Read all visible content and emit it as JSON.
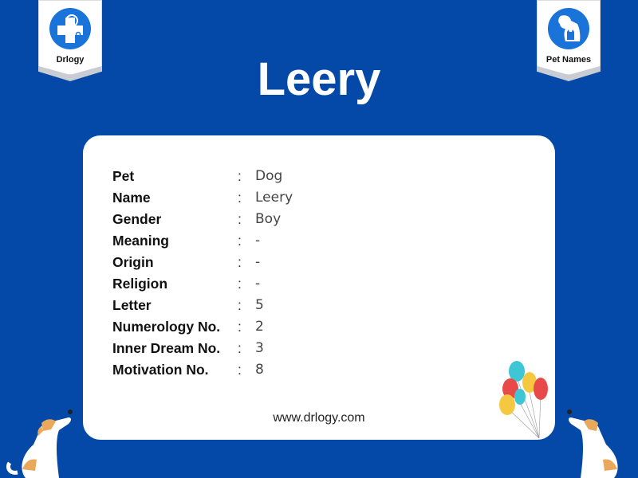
{
  "badges": {
    "left": "Drlogy",
    "right": "Pet Names"
  },
  "title": "Leery",
  "rows": [
    {
      "label": "Pet",
      "value": "Dog"
    },
    {
      "label": "Name",
      "value": "Leery"
    },
    {
      "label": "Gender",
      "value": "Boy"
    },
    {
      "label": "Meaning",
      "value": "-"
    },
    {
      "label": "Origin",
      "value": "-"
    },
    {
      "label": "Religion",
      "value": "-"
    },
    {
      "label": "Letter",
      "value": "5"
    },
    {
      "label": "Numerology No.",
      "value": "2"
    },
    {
      "label": "Inner Dream No.",
      "value": "3"
    },
    {
      "label": "Motivation No.",
      "value": "8"
    }
  ],
  "separator": ":",
  "website": "www.drlogy.com",
  "colors": {
    "background": "#0449a8",
    "accent": "#1a73d9"
  }
}
